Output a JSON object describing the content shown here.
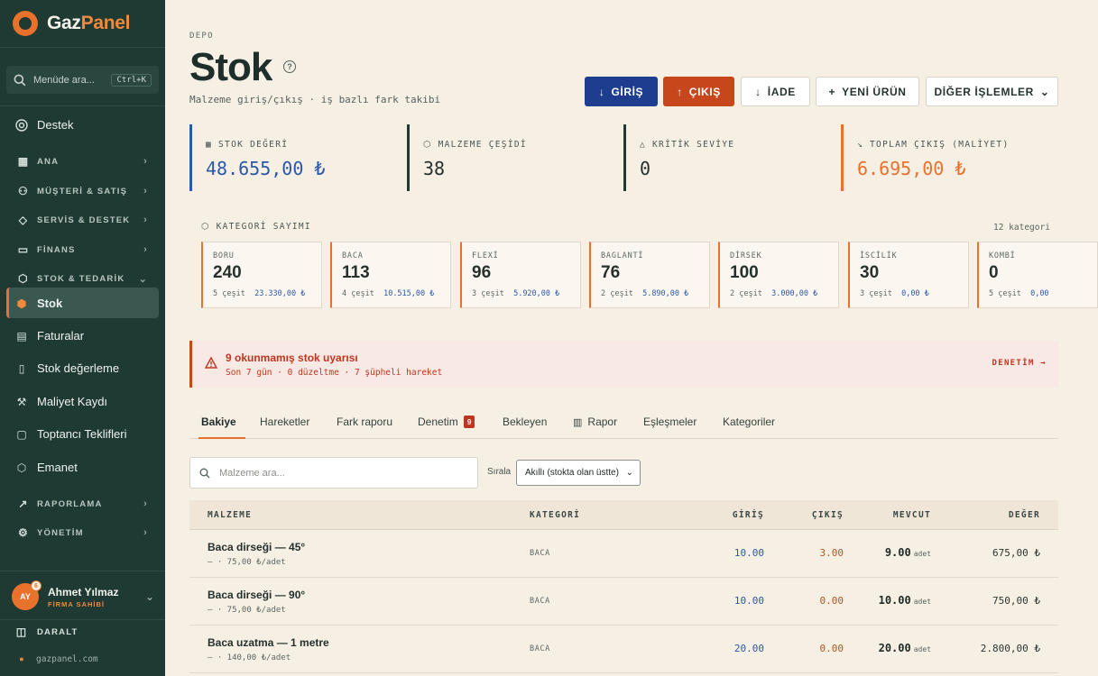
{
  "brand": {
    "part1": "Gaz",
    "part2": "Panel"
  },
  "sidebar": {
    "search_placeholder": "Menüde ara...",
    "search_shortcut": "Ctrl+K",
    "support": "Destek",
    "sections": [
      {
        "label": "ANA"
      },
      {
        "label": "MÜŞTERİ & SATIŞ"
      },
      {
        "label": "SERVİS & DESTEK"
      },
      {
        "label": "FİNANS"
      },
      {
        "label": "STOK & TEDARİK"
      }
    ],
    "stock_items": [
      "Stok",
      "Faturalar",
      "Stok değerleme",
      "Maliyet Kaydı",
      "Toptancı Teklifleri",
      "Emanet"
    ],
    "bottom_sections": [
      {
        "label": "RAPORLAMA"
      },
      {
        "label": "YÖNETİM"
      }
    ],
    "user": {
      "initials": "AY",
      "notifications": "6",
      "name": "Ahmet Yılmaz",
      "role": "FİRMA SAHİBİ"
    },
    "collapse": "DARALT",
    "site": "gazpanel.com"
  },
  "header": {
    "breadcrumb": "DEPO",
    "title": "Stok",
    "subtitle": "Malzeme giriş/çıkış · iş bazlı fark takibi"
  },
  "actions": {
    "in": "GİRİŞ",
    "out": "ÇIKIŞ",
    "return": "İADE",
    "new": "YENİ ÜRÜN",
    "more": "DİĞER İŞLEMLER"
  },
  "kpis": [
    {
      "label": "STOK DEĞERİ",
      "value": "48.655,00 ₺",
      "color": "#2c58a8"
    },
    {
      "label": "MALZEME ÇEŞİDİ",
      "value": "38",
      "color": "#24302c"
    },
    {
      "label": "KRİTİK SEVİYE",
      "value": "0",
      "color": "#24302c"
    },
    {
      "label": "TOPLAM ÇIKIŞ (MALİYET)",
      "value": "6.695,00 ₺",
      "color": "#e8712b"
    }
  ],
  "categories": {
    "title": "KATEGORİ SAYIMI",
    "count": "12 kategori",
    "items": [
      {
        "name": "BORU",
        "count": "240",
        "variants": "5 çeşit",
        "value": "23.330,00 ₺"
      },
      {
        "name": "BACA",
        "count": "113",
        "variants": "4 çeşit",
        "value": "10.515,00 ₺"
      },
      {
        "name": "FLEXİ",
        "count": "96",
        "variants": "3 çeşit",
        "value": "5.920,00 ₺"
      },
      {
        "name": "BAGLANTİ",
        "count": "76",
        "variants": "2 çeşit",
        "value": "5.890,00 ₺"
      },
      {
        "name": "DİRSEK",
        "count": "100",
        "variants": "2 çeşit",
        "value": "3.000,00 ₺"
      },
      {
        "name": "İSCİLİK",
        "count": "30",
        "variants": "3 çeşit",
        "value": "0,00 ₺"
      },
      {
        "name": "KOMBİ",
        "count": "0",
        "variants": "5 çeşit",
        "value": "0,00"
      }
    ]
  },
  "alert": {
    "title": "9 okunmamış stok uyarısı",
    "subtitle": "Son 7 gün · 0 düzeltme · 7 şüpheli hareket",
    "action": "DENETİM →"
  },
  "tabs": [
    {
      "label": "Bakiye"
    },
    {
      "label": "Hareketler"
    },
    {
      "label": "Fark raporu"
    },
    {
      "label": "Denetim",
      "badge": "9"
    },
    {
      "label": "Bekleyen"
    },
    {
      "label": "Rapor"
    },
    {
      "label": "Eşleşmeler"
    },
    {
      "label": "Kategoriler"
    }
  ],
  "filter": {
    "search_placeholder": "Malzeme ara...",
    "sort_label": "Sırala",
    "sort_value": "Akıllı (stokta olan üstte)"
  },
  "table": {
    "headers": [
      "MALZEME",
      "KATEGORİ",
      "GİRİŞ",
      "ÇIKIŞ",
      "MEVCUT",
      "DEĞER"
    ],
    "unit": "adet",
    "rows": [
      {
        "name": "Baca dirseği — 45°",
        "price": "— · 75,00 ₺/adet",
        "category": "BACA",
        "in": "10.00",
        "out": "3.00",
        "current": "9.00",
        "value": "675,00 ₺"
      },
      {
        "name": "Baca dirseği — 90°",
        "price": "— · 75,00 ₺/adet",
        "category": "BACA",
        "in": "10.00",
        "out": "0.00",
        "current": "10.00",
        "value": "750,00 ₺"
      },
      {
        "name": "Baca uzatma — 1 metre",
        "price": "— · 140,00 ₺/adet",
        "category": "BACA",
        "in": "20.00",
        "out": "0.00",
        "current": "20.00",
        "value": "2.800,00 ₺"
      }
    ]
  }
}
